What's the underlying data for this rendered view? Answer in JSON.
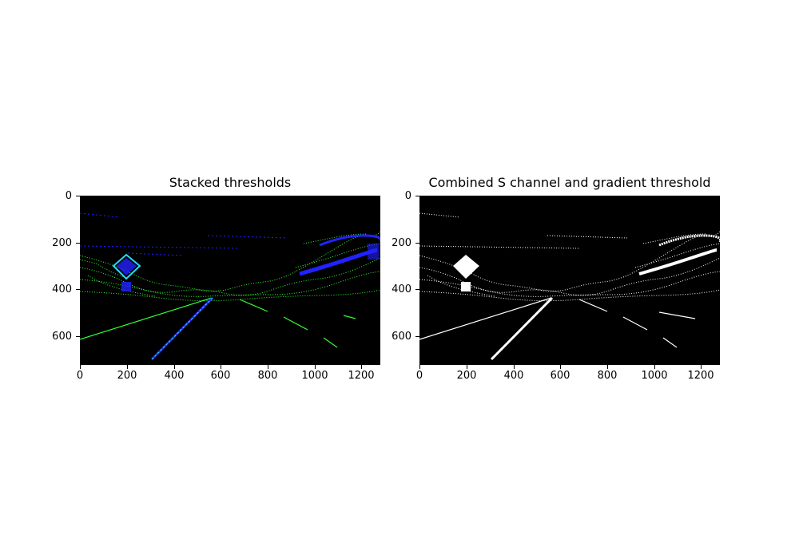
{
  "figure": {
    "panels": [
      {
        "title": "Stacked thresholds",
        "y_ticks": [
          "0",
          "200",
          "400",
          "600"
        ],
        "x_ticks": [
          "0",
          "200",
          "400",
          "600",
          "800",
          "1000",
          "1200"
        ],
        "colors": {
          "gradient": "#33ff33",
          "s_channel": "#2222ff",
          "both": "#22ddff"
        }
      },
      {
        "title": "Combined S channel and gradient threshold",
        "y_ticks": [
          "0",
          "200",
          "400",
          "600"
        ],
        "x_ticks": [
          "0",
          "200",
          "400",
          "600",
          "800",
          "1000",
          "1200"
        ],
        "colors": {
          "pixels": "#ffffff"
        }
      }
    ]
  }
}
